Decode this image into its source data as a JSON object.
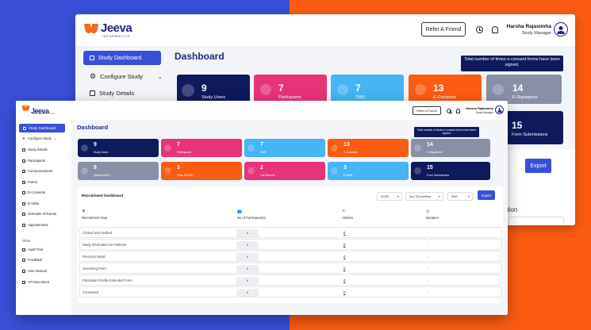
{
  "brand": {
    "name": "Jeeva",
    "sub": "INFORMATICS"
  },
  "header": {
    "refer_label": "Refer A Friend",
    "user_name": "Harsha Rajasimha",
    "user_role": "Study Manager"
  },
  "back_window": {
    "sidebar": [
      {
        "label": "Study Dashboard",
        "active": true
      },
      {
        "label": "Configure Study"
      },
      {
        "label": "Study Details"
      }
    ],
    "title": "Dashboard",
    "tooltip": "Total number of times e-consent forms have been signed.",
    "cards": [
      {
        "value": "9",
        "label": "Study Users",
        "color": "#0e1a5c"
      },
      {
        "value": "7",
        "label": "Participants",
        "color": "#e8337a"
      },
      {
        "value": "7",
        "label": "SMS",
        "color": "#46b4f5"
      },
      {
        "value": "13",
        "label": "E-Consents",
        "color": "#fb5c12"
      },
      {
        "value": "14",
        "label": "E-Signatures",
        "color": "#8a8fa8"
      },
      {
        "value": "15",
        "label": "Form Submissions",
        "color": "#0e1a5c"
      }
    ],
    "export_label": "Export",
    "partial_label": "ation"
  },
  "front_window": {
    "sidebar": [
      {
        "label": "Study Dashboard",
        "active": true
      },
      {
        "label": "Configure Study"
      },
      {
        "label": "Study Details"
      },
      {
        "label": "Participants"
      },
      {
        "label": "Communications"
      },
      {
        "label": "Forms"
      },
      {
        "label": "E-Consents"
      },
      {
        "label": "E-Visits"
      },
      {
        "label": "Schedule of Events"
      },
      {
        "label": "Appointments"
      }
    ],
    "other_section": "Other",
    "other_items": [
      {
        "label": "Audit Trail"
      },
      {
        "label": "Feedback"
      },
      {
        "label": "User Manual"
      },
      {
        "label": "API Document"
      }
    ],
    "title": "Dashboard",
    "tooltip": "Total number of times e-consent forms have been signed.",
    "cards_row1": [
      {
        "value": "9",
        "label": "Study Users",
        "color": "#0e1a5c"
      },
      {
        "value": "7",
        "label": "Participants",
        "color": "#e8337a"
      },
      {
        "value": "7",
        "label": "SMS",
        "color": "#46b4f5"
      },
      {
        "value": "13",
        "label": "E-Consents",
        "color": "#fb5c12"
      },
      {
        "value": "14",
        "label": "E-Signatures",
        "color": "#8a8fa8"
      }
    ],
    "cards_row2": [
      {
        "value": "8",
        "label": "Queues(eRO)",
        "color": "#8a8fa8"
      },
      {
        "value": "3",
        "label": "Visits (eCOA)",
        "color": "#fb5c12"
      },
      {
        "value": "2",
        "label": "Lab Reports",
        "color": "#e8337a"
      },
      {
        "value": "3",
        "label": "E-Visits",
        "color": "#46b4f5"
      },
      {
        "value": "15",
        "label": "Form Submissions",
        "color": "#0e1a5c"
      }
    ],
    "recruitment": {
      "title": "Recruitment Dashboard",
      "filters": [
        "ACMS",
        "Any TM workflow",
        "PMS"
      ],
      "export_label": "Export",
      "columns": [
        "Recruitment Step",
        "No of Participant(s)",
        "Attrition",
        "Duration"
      ],
      "rows": [
        {
          "step": "Clicked and Verified",
          "participants": "0",
          "attrition": "0",
          "duration": "-"
        },
        {
          "step": "Study Information for Patients",
          "participants": "0",
          "attrition": "0",
          "duration": "-"
        },
        {
          "step": "Personal Detail",
          "participants": "0",
          "attrition": "0",
          "duration": "-"
        },
        {
          "step": "Screening Form",
          "participants": "0",
          "attrition": "0",
          "duration": "-"
        },
        {
          "step": "Participant Profile Extended Form",
          "participants": "0",
          "attrition": "0",
          "duration": "-"
        },
        {
          "step": "Consented",
          "participants": "0",
          "attrition": "0",
          "duration": "-"
        }
      ]
    }
  }
}
